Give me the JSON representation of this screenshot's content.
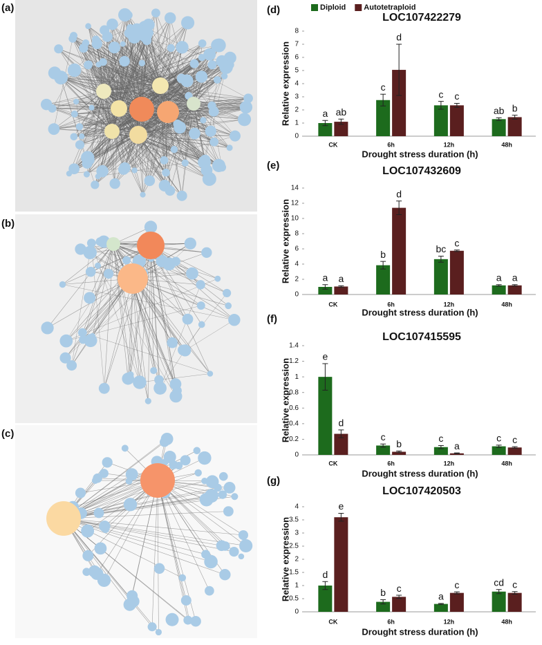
{
  "network_panels": [
    {
      "label": "(a)"
    },
    {
      "label": "(b)"
    },
    {
      "label": "(c)"
    }
  ],
  "chart_data": [
    {
      "type": "bar",
      "panel": "(d)",
      "title": "LOC107422279",
      "x_label": "Drought  stress duration (h)",
      "y_label": "Relative expression",
      "categories": [
        "CK",
        "6h",
        "12h",
        "48h"
      ],
      "legend": true,
      "ylim": [
        0,
        8
      ],
      "yticks": [
        0,
        1,
        2,
        3,
        4,
        5,
        6,
        7,
        8
      ],
      "series": [
        {
          "name": "Diploid",
          "color": "#1d6b1d",
          "values": [
            1.0,
            2.75,
            2.35,
            1.3
          ],
          "errors": [
            0.2,
            0.45,
            0.3,
            0.1
          ],
          "letters": [
            "a",
            "c",
            "c",
            "ab"
          ]
        },
        {
          "name": "Autotetraploid",
          "color": "#5a1f1f",
          "values": [
            1.1,
            5.05,
            2.35,
            1.45
          ],
          "errors": [
            0.2,
            1.95,
            0.15,
            0.15
          ],
          "letters": [
            "ab",
            "d",
            "c",
            "b"
          ]
        }
      ]
    },
    {
      "type": "bar",
      "panel": "(e)",
      "title": "LOC107432609",
      "x_label": "Drought  stress duration (h)",
      "y_label": "Relative expression",
      "categories": [
        "CK",
        "6h",
        "12h",
        "48h"
      ],
      "legend": false,
      "ylim": [
        0,
        14
      ],
      "yticks": [
        0,
        2,
        4,
        6,
        8,
        10,
        12,
        14
      ],
      "series": [
        {
          "name": "Diploid",
          "color": "#1d6b1d",
          "values": [
            1.0,
            3.85,
            4.65,
            1.2
          ],
          "errors": [
            0.3,
            0.5,
            0.4,
            0.1
          ],
          "letters": [
            "a",
            "b",
            "bc",
            "a"
          ]
        },
        {
          "name": "Autotetraploid",
          "color": "#5a1f1f",
          "values": [
            1.05,
            11.4,
            5.75,
            1.2
          ],
          "errors": [
            0.1,
            0.9,
            0.1,
            0.1
          ],
          "letters": [
            "a",
            "d",
            "c",
            "a"
          ]
        }
      ]
    },
    {
      "type": "bar",
      "panel": "(f)",
      "title": "LOC107415595",
      "x_label": "Drought  stress duration (h)",
      "y_label": "Relative expression",
      "categories": [
        "CK",
        "6h",
        "12h",
        "48h"
      ],
      "legend": false,
      "ylim": [
        0,
        1.4
      ],
      "yticks": [
        0,
        0.2,
        0.4,
        0.6,
        0.8,
        1,
        1.2,
        1.4
      ],
      "series": [
        {
          "name": "Diploid",
          "color": "#1d6b1d",
          "values": [
            1.0,
            0.12,
            0.1,
            0.11
          ],
          "errors": [
            0.17,
            0.02,
            0.02,
            0.015
          ],
          "letters": [
            "e",
            "c",
            "c",
            "c"
          ]
        },
        {
          "name": "Autotetraploid",
          "color": "#5a1f1f",
          "values": [
            0.27,
            0.04,
            0.02,
            0.095
          ],
          "errors": [
            0.05,
            0.01,
            0.005,
            0.01
          ],
          "letters": [
            "d",
            "b",
            "a",
            "c"
          ]
        }
      ]
    },
    {
      "type": "bar",
      "panel": "(g)",
      "title": "LOC107420503",
      "x_label": "Drought  stress duration (h)",
      "y_label": "Relative expression",
      "categories": [
        "CK",
        "6h",
        "12h",
        "48h"
      ],
      "legend": false,
      "ylim": [
        0,
        4
      ],
      "yticks": [
        0,
        0.5,
        1,
        1.5,
        2,
        2.5,
        3,
        3.5,
        4
      ],
      "series": [
        {
          "name": "Diploid",
          "color": "#1d6b1d",
          "values": [
            1.0,
            0.38,
            0.3,
            0.77
          ],
          "errors": [
            0.15,
            0.08,
            0.02,
            0.08
          ],
          "letters": [
            "d",
            "b",
            "a",
            "cd"
          ]
        },
        {
          "name": "Autotetraploid",
          "color": "#5a1f1f",
          "values": [
            3.6,
            0.57,
            0.72,
            0.72
          ],
          "errors": [
            0.15,
            0.06,
            0.04,
            0.05
          ],
          "letters": [
            "e",
            "c",
            "c",
            "c"
          ]
        }
      ]
    }
  ]
}
